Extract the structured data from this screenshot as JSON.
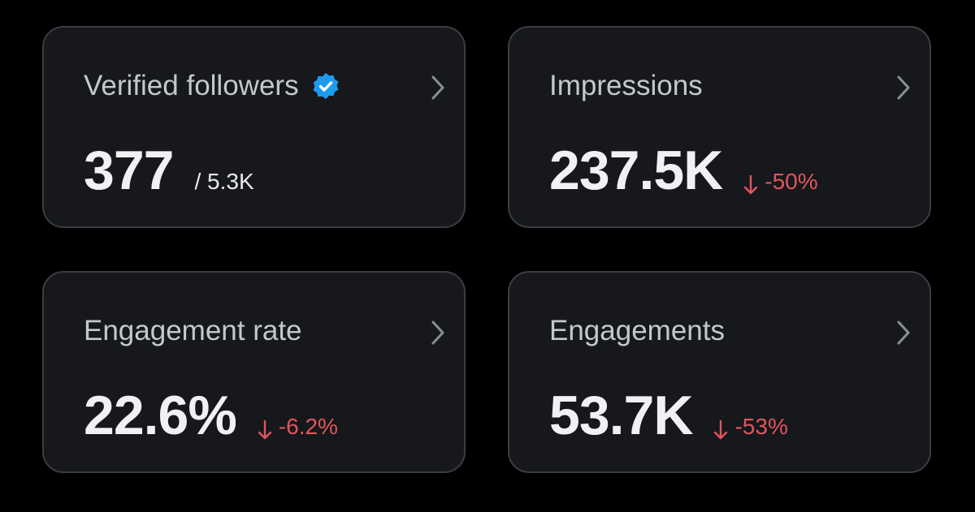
{
  "cards": [
    {
      "title": "Verified followers",
      "value": "377",
      "total": "/ 5.3K",
      "verified": true
    },
    {
      "title": "Impressions",
      "value": "237.5K",
      "change": "-50%"
    },
    {
      "title": "Engagement rate",
      "value": "22.6%",
      "change": "-6.2%"
    },
    {
      "title": "Engagements",
      "value": "53.7K",
      "change": "-53%"
    }
  ]
}
